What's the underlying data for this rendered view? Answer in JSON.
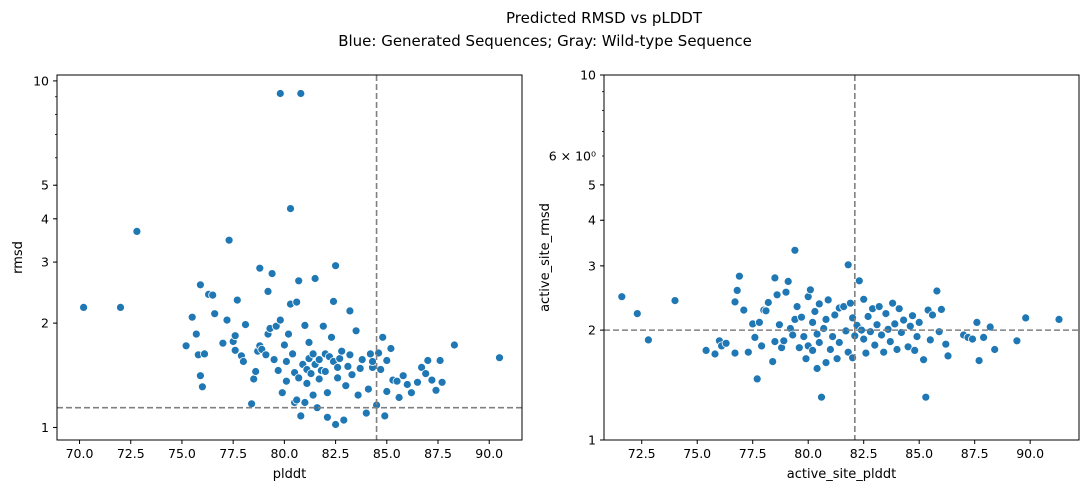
{
  "figure": {
    "title_line1": "Predicted RMSD vs pLDDT",
    "title_line2": "Blue: Generated Sequences; Gray: Wild-type Sequence",
    "colors": {
      "points": "#1f77b4",
      "point_edge": "#ffffff",
      "reference_line": "#808080",
      "axes": "#000000"
    }
  },
  "chart_data": [
    {
      "type": "scatter",
      "title": "",
      "xlabel": "plddt",
      "ylabel": "rmsd",
      "xlim": [
        68.9,
        91.6
      ],
      "ylim": [
        0.92,
        10.4
      ],
      "yscale": "log",
      "xticks": [
        "70.0",
        "72.5",
        "75.0",
        "77.5",
        "80.0",
        "82.5",
        "85.0",
        "87.5",
        "90.0"
      ],
      "xtick_values": [
        70,
        72.5,
        75,
        77.5,
        80,
        82.5,
        85,
        87.5,
        90
      ],
      "yticks": [
        "1",
        "2",
        "3",
        "4",
        "5",
        "10"
      ],
      "ytick_values": [
        1,
        2,
        3,
        4,
        5,
        10
      ],
      "reference_lines": {
        "x": 84.5,
        "y": 1.14
      },
      "grid": false,
      "points": [
        [
          70.2,
          2.22
        ],
        [
          72.0,
          2.22
        ],
        [
          72.8,
          3.68
        ],
        [
          75.2,
          1.72
        ],
        [
          75.5,
          2.08
        ],
        [
          75.8,
          1.62
        ],
        [
          76.0,
          1.31
        ],
        [
          75.9,
          1.41
        ],
        [
          76.1,
          1.63
        ],
        [
          75.7,
          1.86
        ],
        [
          75.9,
          2.58
        ],
        [
          76.3,
          2.42
        ],
        [
          76.5,
          2.41
        ],
        [
          76.6,
          2.13
        ],
        [
          77.3,
          3.47
        ],
        [
          77.0,
          1.75
        ],
        [
          77.2,
          2.04
        ],
        [
          77.5,
          1.77
        ],
        [
          77.6,
          1.67
        ],
        [
          77.6,
          1.84
        ],
        [
          77.7,
          2.33
        ],
        [
          77.9,
          1.61
        ],
        [
          78.0,
          1.55
        ],
        [
          78.1,
          1.98
        ],
        [
          78.4,
          1.17
        ],
        [
          78.5,
          1.38
        ],
        [
          78.6,
          1.45
        ],
        [
          78.7,
          1.66
        ],
        [
          78.8,
          1.72
        ],
        [
          78.8,
          2.88
        ],
        [
          78.9,
          1.68
        ],
        [
          79.1,
          1.62
        ],
        [
          79.2,
          1.86
        ],
        [
          79.2,
          2.47
        ],
        [
          79.3,
          1.93
        ],
        [
          79.5,
          1.57
        ],
        [
          79.4,
          2.78
        ],
        [
          79.6,
          1.96
        ],
        [
          79.7,
          1.46
        ],
        [
          79.8,
          2.04
        ],
        [
          79.8,
          9.2
        ],
        [
          79.9,
          1.26
        ],
        [
          80.0,
          1.73
        ],
        [
          80.1,
          1.55
        ],
        [
          80.1,
          1.36
        ],
        [
          80.2,
          1.86
        ],
        [
          80.3,
          2.27
        ],
        [
          80.3,
          4.28
        ],
        [
          80.4,
          1.63
        ],
        [
          80.5,
          1.18
        ],
        [
          80.5,
          1.44
        ],
        [
          80.6,
          1.2
        ],
        [
          80.6,
          2.3
        ],
        [
          80.7,
          1.39
        ],
        [
          80.7,
          2.65
        ],
        [
          80.8,
          9.2
        ],
        [
          80.8,
          1.08
        ],
        [
          80.9,
          1.52
        ],
        [
          81.0,
          1.18
        ],
        [
          81.0,
          1.97
        ],
        [
          81.1,
          1.47
        ],
        [
          81.1,
          1.34
        ],
        [
          81.2,
          1.76
        ],
        [
          81.2,
          1.58
        ],
        [
          81.3,
          1.43
        ],
        [
          81.4,
          1.24
        ],
        [
          81.4,
          1.63
        ],
        [
          81.5,
          2.69
        ],
        [
          81.5,
          1.52
        ],
        [
          81.6,
          1.14
        ],
        [
          81.7,
          1.38
        ],
        [
          81.7,
          1.57
        ],
        [
          81.8,
          1.46
        ],
        [
          81.9,
          1.96
        ],
        [
          82.0,
          1.45
        ],
        [
          82.0,
          1.63
        ],
        [
          82.1,
          1.07
        ],
        [
          82.1,
          1.26
        ],
        [
          82.2,
          1.6
        ],
        [
          82.3,
          1.82
        ],
        [
          82.4,
          2.31
        ],
        [
          82.4,
          1.55
        ],
        [
          82.5,
          2.93
        ],
        [
          82.5,
          1.02
        ],
        [
          82.6,
          1.49
        ],
        [
          82.6,
          1.39
        ],
        [
          82.7,
          1.58
        ],
        [
          82.8,
          1.66
        ],
        [
          82.9,
          1.05
        ],
        [
          83.0,
          1.32
        ],
        [
          83.1,
          1.5
        ],
        [
          83.2,
          2.17
        ],
        [
          83.2,
          1.62
        ],
        [
          83.3,
          1.42
        ],
        [
          83.5,
          1.9
        ],
        [
          83.6,
          1.24
        ],
        [
          83.7,
          1.48
        ],
        [
          83.8,
          1.57
        ],
        [
          84.0,
          1.1
        ],
        [
          84.1,
          1.29
        ],
        [
          84.2,
          1.63
        ],
        [
          84.3,
          1.49
        ],
        [
          84.3,
          1.55
        ],
        [
          84.5,
          1.16
        ],
        [
          84.6,
          1.64
        ],
        [
          84.7,
          1.47
        ],
        [
          84.8,
          1.82
        ],
        [
          84.9,
          1.08
        ],
        [
          85.0,
          1.27
        ],
        [
          85.0,
          1.56
        ],
        [
          85.2,
          1.69
        ],
        [
          85.3,
          1.37
        ],
        [
          85.5,
          1.36
        ],
        [
          85.6,
          1.22
        ],
        [
          85.8,
          1.41
        ],
        [
          86.0,
          1.33
        ],
        [
          86.2,
          1.26
        ],
        [
          86.5,
          1.35
        ],
        [
          86.7,
          1.49
        ],
        [
          86.9,
          1.43
        ],
        [
          87.0,
          1.56
        ],
        [
          87.2,
          1.37
        ],
        [
          87.4,
          1.28
        ],
        [
          87.6,
          1.56
        ],
        [
          87.7,
          1.35
        ],
        [
          88.3,
          1.73
        ],
        [
          90.5,
          1.59
        ]
      ]
    },
    {
      "type": "scatter",
      "title": "",
      "xlabel": "active_site_plddt",
      "ylabel": "active_site_rmsd",
      "xlim": [
        70.8,
        92.2
      ],
      "ylim": [
        1.0,
        10.0
      ],
      "yscale": "log",
      "xticks": [
        "72.5",
        "75.0",
        "77.5",
        "80.0",
        "82.5",
        "85.0",
        "87.5",
        "90.0"
      ],
      "xtick_values": [
        72.5,
        75,
        77.5,
        80,
        82.5,
        85,
        87.5,
        90
      ],
      "yticks": [
        "1",
        "2",
        "3",
        "4",
        "5",
        "10"
      ],
      "ytick_values": [
        1,
        2,
        3,
        4,
        5,
        10
      ],
      "minor_tick_label": "6 × 10⁰",
      "reference_lines": {
        "x": 82.1,
        "y": 2.0
      },
      "grid": false,
      "points": [
        [
          71.6,
          2.47
        ],
        [
          72.3,
          2.22
        ],
        [
          72.8,
          1.88
        ],
        [
          74.0,
          2.41
        ],
        [
          75.4,
          1.76
        ],
        [
          75.8,
          1.72
        ],
        [
          76.0,
          1.87
        ],
        [
          76.1,
          1.81
        ],
        [
          76.3,
          1.84
        ],
        [
          76.7,
          1.73
        ],
        [
          76.7,
          2.39
        ],
        [
          76.8,
          2.57
        ],
        [
          76.9,
          2.81
        ],
        [
          77.1,
          2.27
        ],
        [
          77.3,
          1.74
        ],
        [
          77.5,
          2.08
        ],
        [
          77.6,
          1.91
        ],
        [
          77.7,
          1.47
        ],
        [
          77.8,
          2.1
        ],
        [
          77.9,
          1.81
        ],
        [
          78.0,
          2.27
        ],
        [
          78.1,
          2.26
        ],
        [
          78.2,
          2.38
        ],
        [
          78.4,
          1.64
        ],
        [
          78.5,
          1.86
        ],
        [
          78.5,
          2.78
        ],
        [
          78.6,
          2.5
        ],
        [
          78.7,
          2.07
        ],
        [
          78.8,
          1.79
        ],
        [
          78.9,
          1.87
        ],
        [
          79.0,
          2.54
        ],
        [
          79.1,
          2.72
        ],
        [
          79.2,
          2.02
        ],
        [
          79.3,
          1.94
        ],
        [
          79.4,
          2.14
        ],
        [
          79.4,
          3.31
        ],
        [
          79.5,
          2.32
        ],
        [
          79.6,
          1.79
        ],
        [
          79.7,
          2.17
        ],
        [
          79.8,
          1.92
        ],
        [
          79.9,
          1.67
        ],
        [
          80.0,
          2.47
        ],
        [
          80.0,
          1.81
        ],
        [
          80.1,
          2.58
        ],
        [
          80.2,
          2.1
        ],
        [
          80.2,
          1.76
        ],
        [
          80.3,
          2.25
        ],
        [
          80.4,
          1.95
        ],
        [
          80.4,
          1.57
        ],
        [
          80.5,
          2.36
        ],
        [
          80.5,
          1.85
        ],
        [
          80.6,
          1.31
        ],
        [
          80.7,
          2.02
        ],
        [
          80.8,
          2.14
        ],
        [
          80.8,
          1.63
        ],
        [
          80.9,
          2.42
        ],
        [
          81.0,
          1.77
        ],
        [
          81.1,
          1.92
        ],
        [
          81.2,
          2.2
        ],
        [
          81.3,
          1.67
        ],
        [
          81.4,
          2.3
        ],
        [
          81.4,
          1.85
        ],
        [
          81.6,
          2.32
        ],
        [
          81.7,
          1.99
        ],
        [
          81.8,
          3.02
        ],
        [
          81.8,
          1.74
        ],
        [
          81.9,
          2.37
        ],
        [
          82.0,
          1.68
        ],
        [
          82.0,
          2.16
        ],
        [
          82.1,
          1.93
        ],
        [
          82.2,
          2.06
        ],
        [
          82.3,
          2.73
        ],
        [
          82.4,
          2.0
        ],
        [
          82.5,
          1.89
        ],
        [
          82.5,
          2.43
        ],
        [
          82.6,
          1.73
        ],
        [
          82.7,
          2.18
        ],
        [
          82.8,
          1.98
        ],
        [
          82.9,
          2.29
        ],
        [
          83.0,
          1.82
        ],
        [
          83.1,
          2.07
        ],
        [
          83.2,
          2.32
        ],
        [
          83.3,
          1.94
        ],
        [
          83.4,
          1.74
        ],
        [
          83.5,
          2.22
        ],
        [
          83.6,
          2.01
        ],
        [
          83.7,
          1.86
        ],
        [
          83.8,
          2.37
        ],
        [
          83.9,
          2.08
        ],
        [
          84.0,
          1.77
        ],
        [
          84.1,
          2.29
        ],
        [
          84.2,
          1.97
        ],
        [
          84.3,
          2.13
        ],
        [
          84.5,
          1.8
        ],
        [
          84.6,
          2.05
        ],
        [
          84.7,
          2.19
        ],
        [
          84.8,
          1.76
        ],
        [
          84.9,
          1.92
        ],
        [
          85.0,
          2.1
        ],
        [
          85.2,
          1.66
        ],
        [
          85.3,
          1.31
        ],
        [
          85.4,
          2.27
        ],
        [
          85.5,
          1.88
        ],
        [
          85.6,
          2.2
        ],
        [
          85.8,
          2.56
        ],
        [
          85.9,
          1.98
        ],
        [
          86.0,
          2.28
        ],
        [
          86.2,
          1.83
        ],
        [
          86.3,
          1.7
        ],
        [
          87.0,
          1.94
        ],
        [
          87.2,
          1.91
        ],
        [
          87.4,
          1.89
        ],
        [
          87.6,
          2.1
        ],
        [
          87.7,
          1.65
        ],
        [
          87.9,
          1.91
        ],
        [
          88.2,
          2.04
        ],
        [
          88.4,
          1.77
        ],
        [
          89.4,
          1.87
        ],
        [
          89.8,
          2.16
        ],
        [
          91.3,
          2.14
        ]
      ]
    }
  ]
}
